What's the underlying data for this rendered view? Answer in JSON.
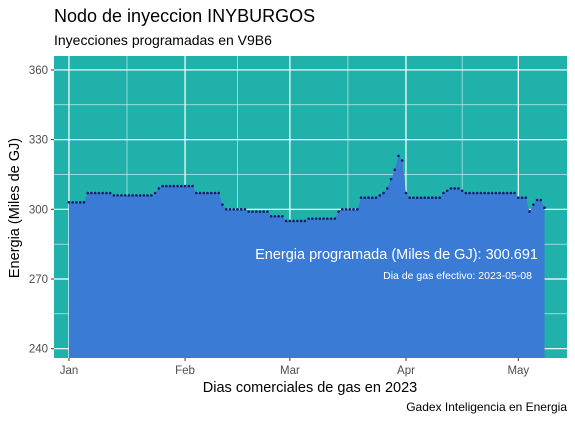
{
  "chart_data": {
    "type": "area",
    "title": "Nodo de inyeccion INYBURGOS",
    "subtitle": "Inyecciones programadas en V9B6",
    "xlabel": "Dias comerciales de gas en 2023",
    "ylabel": "Energia (Miles de GJ)",
    "caption": "Gadex Inteligencia en Energia",
    "ylim": [
      236,
      366
    ],
    "yticks": [
      240,
      270,
      300,
      330,
      360
    ],
    "xlim": [
      "2022-12-28",
      "2023-05-14"
    ],
    "xticks": [
      {
        "date": "2023-01-01",
        "label": "Jan"
      },
      {
        "date": "2023-02-01",
        "label": "Feb"
      },
      {
        "date": "2023-03-01",
        "label": "Mar"
      },
      {
        "date": "2023-04-01",
        "label": "Apr"
      },
      {
        "date": "2023-05-01",
        "label": "May"
      }
    ],
    "grid": true,
    "colors": {
      "panel": "#20B2AA",
      "area": "#3A7BD5",
      "points": "#1a1a6e",
      "grid": "#ffffff"
    },
    "annotation_main": "Energia programada (Miles de GJ): 300.691",
    "annotation_sub": "Dia de gas efectivo: 2023-05-08",
    "series": [
      {
        "points": [
          [
            "2023-01-01",
            303
          ],
          [
            "2023-01-02",
            303
          ],
          [
            "2023-01-03",
            303
          ],
          [
            "2023-01-04",
            303
          ],
          [
            "2023-01-05",
            303
          ],
          [
            "2023-01-06",
            307
          ],
          [
            "2023-01-07",
            307
          ],
          [
            "2023-01-08",
            307
          ],
          [
            "2023-01-09",
            307
          ],
          [
            "2023-01-10",
            307
          ],
          [
            "2023-01-11",
            307
          ],
          [
            "2023-01-12",
            307
          ],
          [
            "2023-01-13",
            306
          ],
          [
            "2023-01-14",
            306
          ],
          [
            "2023-01-15",
            306
          ],
          [
            "2023-01-16",
            306
          ],
          [
            "2023-01-17",
            306
          ],
          [
            "2023-01-18",
            306
          ],
          [
            "2023-01-19",
            306
          ],
          [
            "2023-01-20",
            306
          ],
          [
            "2023-01-21",
            306
          ],
          [
            "2023-01-22",
            306
          ],
          [
            "2023-01-23",
            306
          ],
          [
            "2023-01-24",
            307
          ],
          [
            "2023-01-25",
            309
          ],
          [
            "2023-01-26",
            310
          ],
          [
            "2023-01-27",
            310
          ],
          [
            "2023-01-28",
            310
          ],
          [
            "2023-01-29",
            310
          ],
          [
            "2023-01-30",
            310
          ],
          [
            "2023-01-31",
            310
          ],
          [
            "2023-02-01",
            310
          ],
          [
            "2023-02-02",
            310
          ],
          [
            "2023-02-03",
            310
          ],
          [
            "2023-02-04",
            307
          ],
          [
            "2023-02-05",
            307
          ],
          [
            "2023-02-06",
            307
          ],
          [
            "2023-02-07",
            307
          ],
          [
            "2023-02-08",
            307
          ],
          [
            "2023-02-09",
            307
          ],
          [
            "2023-02-10",
            307
          ],
          [
            "2023-02-11",
            302
          ],
          [
            "2023-02-12",
            300
          ],
          [
            "2023-02-13",
            300
          ],
          [
            "2023-02-14",
            300
          ],
          [
            "2023-02-15",
            300
          ],
          [
            "2023-02-16",
            300
          ],
          [
            "2023-02-17",
            300
          ],
          [
            "2023-02-18",
            299
          ],
          [
            "2023-02-19",
            299
          ],
          [
            "2023-02-20",
            299
          ],
          [
            "2023-02-21",
            299
          ],
          [
            "2023-02-22",
            299
          ],
          [
            "2023-02-23",
            299
          ],
          [
            "2023-02-24",
            297
          ],
          [
            "2023-02-25",
            297
          ],
          [
            "2023-02-26",
            297
          ],
          [
            "2023-02-27",
            297
          ],
          [
            "2023-02-28",
            295
          ],
          [
            "2023-03-01",
            295
          ],
          [
            "2023-03-02",
            295
          ],
          [
            "2023-03-03",
            295
          ],
          [
            "2023-03-04",
            295
          ],
          [
            "2023-03-05",
            295
          ],
          [
            "2023-03-06",
            296
          ],
          [
            "2023-03-07",
            296
          ],
          [
            "2023-03-08",
            296
          ],
          [
            "2023-03-09",
            296
          ],
          [
            "2023-03-10",
            296
          ],
          [
            "2023-03-11",
            296
          ],
          [
            "2023-03-12",
            296
          ],
          [
            "2023-03-13",
            296
          ],
          [
            "2023-03-14",
            299
          ],
          [
            "2023-03-15",
            300
          ],
          [
            "2023-03-16",
            300
          ],
          [
            "2023-03-17",
            300
          ],
          [
            "2023-03-18",
            300
          ],
          [
            "2023-03-19",
            300
          ],
          [
            "2023-03-20",
            305
          ],
          [
            "2023-03-21",
            305
          ],
          [
            "2023-03-22",
            305
          ],
          [
            "2023-03-23",
            305
          ],
          [
            "2023-03-24",
            305
          ],
          [
            "2023-03-25",
            306
          ],
          [
            "2023-03-26",
            307
          ],
          [
            "2023-03-27",
            309
          ],
          [
            "2023-03-28",
            313
          ],
          [
            "2023-03-29",
            317
          ],
          [
            "2023-03-30",
            323
          ],
          [
            "2023-03-31",
            321
          ],
          [
            "2023-04-01",
            307
          ],
          [
            "2023-04-02",
            305
          ],
          [
            "2023-04-03",
            305
          ],
          [
            "2023-04-04",
            305
          ],
          [
            "2023-04-05",
            305
          ],
          [
            "2023-04-06",
            305
          ],
          [
            "2023-04-07",
            305
          ],
          [
            "2023-04-08",
            305
          ],
          [
            "2023-04-09",
            305
          ],
          [
            "2023-04-10",
            305
          ],
          [
            "2023-04-11",
            307
          ],
          [
            "2023-04-12",
            308
          ],
          [
            "2023-04-13",
            309
          ],
          [
            "2023-04-14",
            309
          ],
          [
            "2023-04-15",
            309
          ],
          [
            "2023-04-16",
            308
          ],
          [
            "2023-04-17",
            307
          ],
          [
            "2023-04-18",
            307
          ],
          [
            "2023-04-19",
            307
          ],
          [
            "2023-04-20",
            307
          ],
          [
            "2023-04-21",
            307
          ],
          [
            "2023-04-22",
            307
          ],
          [
            "2023-04-23",
            307
          ],
          [
            "2023-04-24",
            307
          ],
          [
            "2023-04-25",
            307
          ],
          [
            "2023-04-26",
            307
          ],
          [
            "2023-04-27",
            307
          ],
          [
            "2023-04-28",
            307
          ],
          [
            "2023-04-29",
            307
          ],
          [
            "2023-04-30",
            307
          ],
          [
            "2023-05-01",
            305
          ],
          [
            "2023-05-02",
            305
          ],
          [
            "2023-05-03",
            305
          ],
          [
            "2023-05-04",
            299
          ],
          [
            "2023-05-05",
            302
          ],
          [
            "2023-05-06",
            304
          ],
          [
            "2023-05-07",
            304
          ],
          [
            "2023-05-08",
            300.691
          ]
        ]
      }
    ]
  }
}
